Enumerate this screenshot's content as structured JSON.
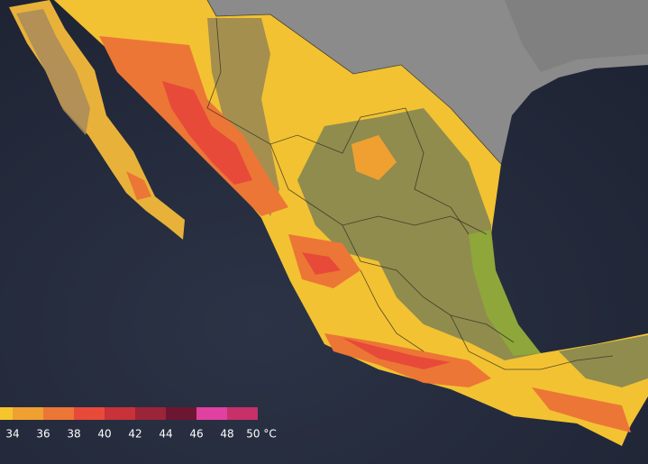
{
  "legend": {
    "items": [
      {
        "label": "34",
        "color": "#f5c52e"
      },
      {
        "label": "36",
        "color": "#f0a030"
      },
      {
        "label": "38",
        "color": "#ec7636"
      },
      {
        "label": "40",
        "color": "#e84a3a"
      },
      {
        "label": "42",
        "color": "#c93238"
      },
      {
        "label": "44",
        "color": "#9c2438"
      },
      {
        "label": "46",
        "color": "#6c1632"
      },
      {
        "label": "48",
        "color": "#e040a0"
      },
      {
        "label": "50 °C",
        "color": "#c8306a"
      }
    ]
  }
}
